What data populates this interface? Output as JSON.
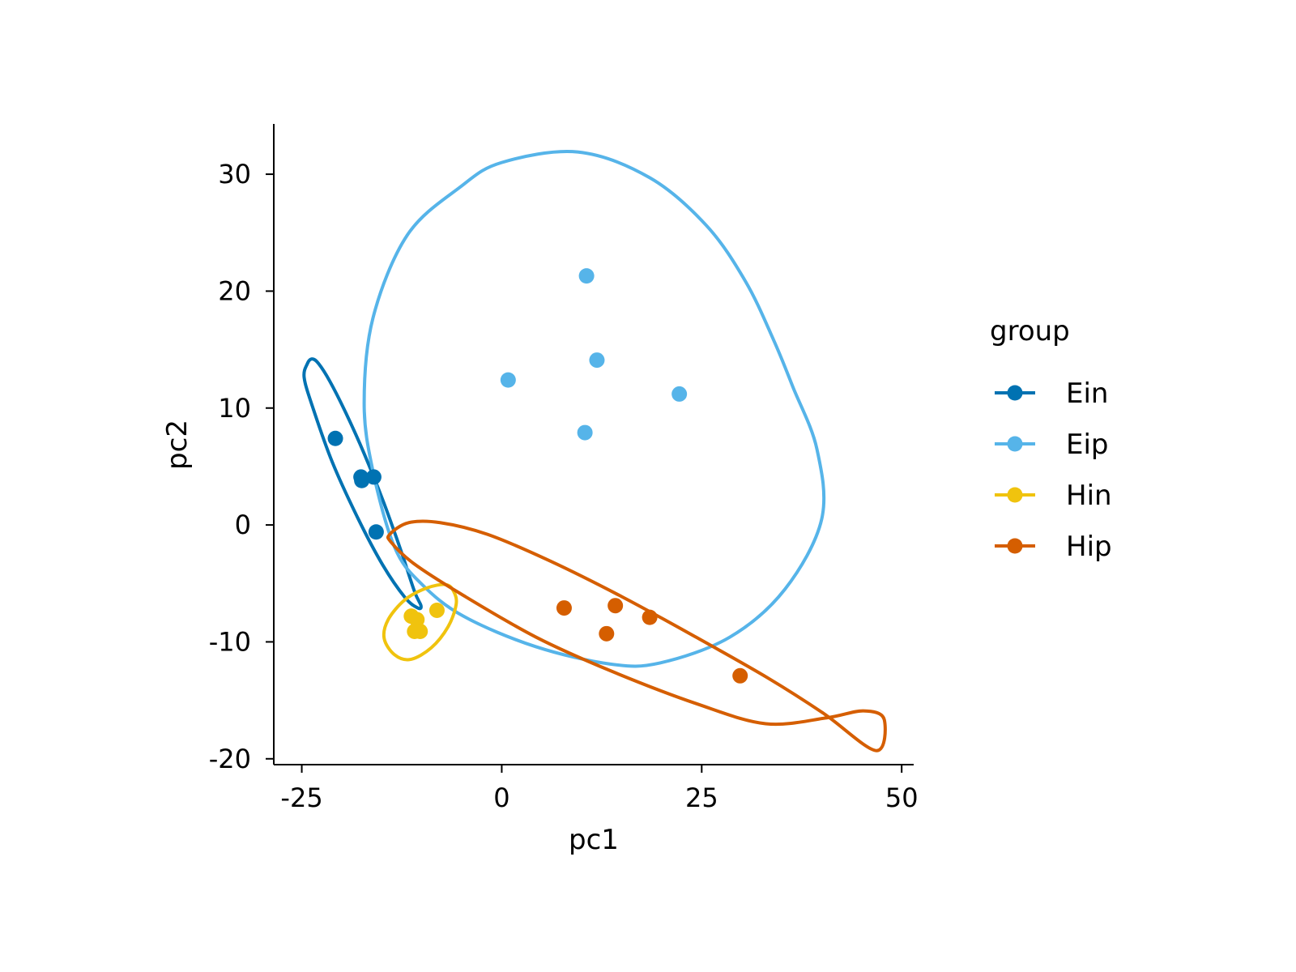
{
  "chart_data": {
    "type": "scatter",
    "title": "",
    "xlabel": "pc1",
    "ylabel": "pc2",
    "xlim": [
      -28.5,
      51.5
    ],
    "ylim": [
      -20.5,
      34.3
    ],
    "xticks": [
      -25,
      0,
      25,
      50
    ],
    "xtick_labels": [
      "-25",
      "0",
      "25",
      "50"
    ],
    "yticks": [
      -20,
      -10,
      0,
      10,
      20,
      30
    ],
    "ytick_labels": [
      "-20",
      "-10",
      "0",
      "10",
      "20",
      "30"
    ],
    "grid": false,
    "legend": {
      "title": "group",
      "placement": "right"
    },
    "series": [
      {
        "name": "Ein",
        "color": "#0072B2",
        "points": [
          [
            -20.8,
            7.4
          ],
          [
            -17.6,
            4.1
          ],
          [
            -17.5,
            3.8
          ],
          [
            -16.0,
            4.1
          ],
          [
            -15.7,
            -0.6
          ]
        ],
        "ellipse": [
          [
            -24.3,
            13.8
          ],
          [
            -23.7,
            14.2
          ],
          [
            -22.9,
            13.8
          ],
          [
            -21.5,
            12.3
          ],
          [
            -19.5,
            9.6
          ],
          [
            -17.2,
            6.1
          ],
          [
            -14.8,
            2.0
          ],
          [
            -12.6,
            -2.2
          ],
          [
            -10.9,
            -5.7
          ],
          [
            -10.1,
            -6.9
          ],
          [
            -10.5,
            -7.1
          ],
          [
            -12.1,
            -6.2
          ],
          [
            -14.9,
            -3.4
          ],
          [
            -18.0,
            0.6
          ],
          [
            -21.2,
            5.4
          ],
          [
            -23.6,
            10.0
          ],
          [
            -24.7,
            12.6
          ],
          [
            -24.3,
            13.8
          ]
        ]
      },
      {
        "name": "Eip",
        "color": "#56B4E9",
        "points": [
          [
            10.6,
            21.3
          ],
          [
            11.9,
            14.1
          ],
          [
            0.8,
            12.4
          ],
          [
            22.2,
            11.2
          ],
          [
            10.4,
            7.9
          ]
        ],
        "ellipse": [
          [
            9.5,
            31.9
          ],
          [
            18.5,
            29.7
          ],
          [
            25.6,
            25.6
          ],
          [
            30.5,
            20.8
          ],
          [
            34.0,
            15.8
          ],
          [
            36.4,
            11.8
          ],
          [
            39.4,
            6.5
          ],
          [
            40.0,
            0.5
          ],
          [
            35.4,
            -5.5
          ],
          [
            28.5,
            -9.6
          ],
          [
            19.8,
            -11.8
          ],
          [
            13.6,
            -11.9
          ],
          [
            4.2,
            -10.4
          ],
          [
            -4.8,
            -7.8
          ],
          [
            -10.1,
            -5.0
          ],
          [
            -13.4,
            -1.9
          ],
          [
            -16.1,
            4.6
          ],
          [
            -17.2,
            10.4
          ],
          [
            -16.1,
            17.7
          ],
          [
            -11.8,
            24.8
          ],
          [
            -5.2,
            28.9
          ],
          [
            0.0,
            31.0
          ],
          [
            9.5,
            31.9
          ]
        ]
      },
      {
        "name": "Hin",
        "color": "#F0C30E",
        "points": [
          [
            -11.3,
            -7.8
          ],
          [
            -8.1,
            -7.3
          ],
          [
            -10.6,
            -8.1
          ],
          [
            -10.9,
            -9.1
          ],
          [
            -10.2,
            -9.1
          ]
        ],
        "ellipse": [
          [
            -6.0,
            -5.7
          ],
          [
            -5.7,
            -6.8
          ],
          [
            -6.7,
            -8.7
          ],
          [
            -8.8,
            -10.5
          ],
          [
            -11.4,
            -11.5
          ],
          [
            -13.4,
            -11.1
          ],
          [
            -14.7,
            -9.7
          ],
          [
            -14.2,
            -8.1
          ],
          [
            -12.1,
            -6.4
          ],
          [
            -9.4,
            -5.4
          ],
          [
            -7.0,
            -5.1
          ],
          [
            -6.0,
            -5.7
          ]
        ]
      },
      {
        "name": "Hip",
        "color": "#D55E00",
        "points": [
          [
            7.8,
            -7.1
          ],
          [
            14.2,
            -6.9
          ],
          [
            18.5,
            -7.9
          ],
          [
            13.1,
            -9.3
          ],
          [
            29.8,
            -12.9
          ]
        ],
        "ellipse": [
          [
            -14.0,
            -0.8
          ],
          [
            -11.6,
            0.2
          ],
          [
            -7.7,
            0.2
          ],
          [
            -1.8,
            -0.8
          ],
          [
            6.1,
            -3.1
          ],
          [
            15.2,
            -6.2
          ],
          [
            24.3,
            -9.6
          ],
          [
            33.3,
            -13.1
          ],
          [
            40.2,
            -16.1
          ],
          [
            46.8,
            -19.3
          ],
          [
            47.8,
            -16.6
          ],
          [
            45.2,
            -15.9
          ],
          [
            40.6,
            -16.5
          ],
          [
            33.0,
            -17.0
          ],
          [
            24.4,
            -15.3
          ],
          [
            13.7,
            -12.5
          ],
          [
            4.3,
            -9.6
          ],
          [
            -5.1,
            -5.9
          ],
          [
            -11.0,
            -3.3
          ],
          [
            -13.8,
            -1.5
          ],
          [
            -14.0,
            -0.8
          ]
        ]
      }
    ]
  }
}
